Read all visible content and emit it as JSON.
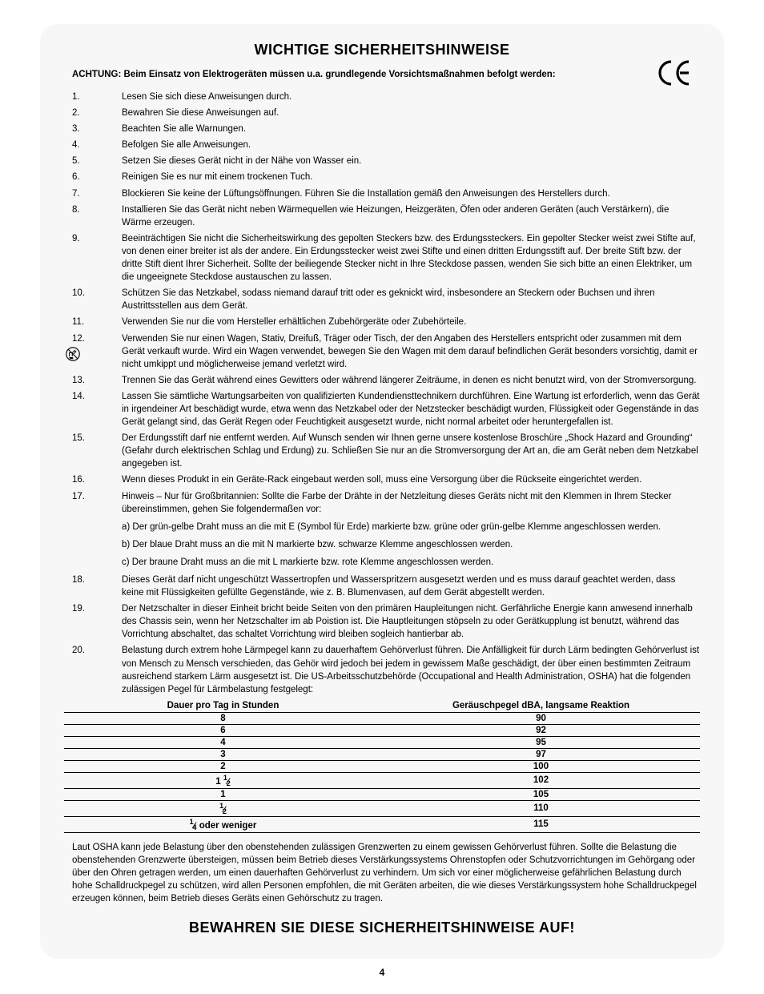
{
  "title": "WICHTIGE SICHERHEITSHINWEISE",
  "ce_mark": "CE",
  "warning": "ACHTUNG: Beim Einsatz von Elektrogeräten müssen u.a. grundlegende Vorsichtsmaßnahmen befolgt werden:",
  "items": [
    "Lesen Sie sich diese Anweisungen durch.",
    "Bewahren Sie diese Anweisungen auf.",
    "Beachten Sie alle Warnungen.",
    "Befolgen Sie alle Anweisungen.",
    "Setzen Sie dieses Gerät nicht in der Nähe von Wasser ein.",
    "Reinigen Sie es nur mit einem trockenen Tuch.",
    "Blockieren Sie keine der Lüftungsöffnungen. Führen Sie die Installation gemäß den Anweisungen des Herstellers durch.",
    "Installieren Sie das Gerät nicht neben Wärmequellen wie Heizungen, Heizgeräten, Öfen oder anderen Geräten (auch Verstärkern), die Wärme erzeugen.",
    "Beeinträchtigen Sie nicht die Sicherheitswirkung des gepolten Steckers bzw. des Erdungssteckers. Ein gepolter Stecker weist zwei Stifte auf, von denen einer breiter ist als der andere. Ein Erdungsstecker weist zwei Stifte und einen dritten Erdungsstift auf. Der breite Stift bzw. der dritte Stift dient Ihrer Sicherheit. Sollte der beiliegende Stecker nicht in Ihre Steckdose passen, wenden Sie sich bitte an einen Elektriker, um die ungeeignete Steckdose austauschen zu lassen.",
    "Schützen Sie das Netzkabel, sodass niemand darauf tritt oder es geknickt wird, insbesondere an Steckern oder Buchsen und ihren Austrittsstellen aus dem Gerät.",
    "Verwenden Sie nur die vom Hersteller erhältlichen Zubehörgeräte oder Zubehörteile.",
    "Verwenden Sie nur einen Wagen, Stativ, Dreifuß, Träger oder Tisch, der den Angaben des Herstellers entspricht oder zusammen mit dem Gerät verkauft wurde. Wird ein Wagen verwendet, bewegen Sie den Wagen mit dem darauf befindlichen Gerät besonders vorsichtig, damit er nicht umkippt und möglicherweise jemand verletzt wird.",
    "Trennen Sie das Gerät während eines Gewitters oder während längerer Zeiträume, in denen es nicht benutzt wird, von der Stromversorgung.",
    "Lassen Sie sämtliche Wartungsarbeiten von qualifizierten Kundendiensttechnikern durchführen. Eine Wartung ist erforderlich, wenn das Gerät in irgendeiner Art beschädigt wurde, etwa wenn das Netzkabel oder der Netzstecker beschädigt wurden, Flüssigkeit oder Gegenstände in das Gerät gelangt sind, das Gerät Regen oder Feuchtigkeit ausgesetzt wurde, nicht normal arbeitet oder heruntergefallen ist.",
    "Der Erdungsstift darf nie entfernt werden. Auf Wunsch senden wir Ihnen gerne unsere kostenlose Broschüre „Shock Hazard and Grounding“ (Gefahr durch elektrischen Schlag und Erdung) zu. Schließen Sie nur an die Stromversorgung der Art an, die am Gerät neben dem Netzkabel angegeben ist.",
    "Wenn dieses Produkt in ein Geräte-Rack eingebaut werden soll, muss eine Versorgung über die Rückseite eingerichtet werden.",
    "Hinweis – Nur für Großbritannien: Sollte die Farbe der Drähte in der Netzleitung dieses Geräts nicht mit den Klemmen in Ihrem Stecker übereinstimmen, gehen Sie folgendermaßen vor:",
    "Dieses Gerät darf nicht ungeschützt Wassertropfen und Wasserspritzern ausgesetzt werden und es muss darauf geachtet werden, dass keine mit Flüssigkeiten gefüllte Gegenstände, wie z. B. Blumenvasen, auf dem Gerät abgestellt werden.",
    "Der  Netzschalter in dieser Einheit bricht beide Seiten von den primären Haupleitungen nicht. Gerfährliche Energie kann anwesend innerhalb des Chassis sein, wenn her Netzschalter im ab Poistion ist. Die Hauptleitungen stöpseln zu oder Gerätkupplung ist benutzt, während das Vorrichtung abschaltet, das schaltet Vorrichtung wird bleiben sogleich hantierbar ab.",
    "Belastung durch extrem hohe Lärmpegel kann zu dauerhaftem Gehörverlust führen. Die Anfälligkeit für durch Lärm bedingten Gehörverlust ist von Mensch zu Mensch verschieden, das Gehör wird jedoch bei jedem in gewissem Maße geschädigt, der über einen bestimmten Zeitraum ausreichend starkem Lärm ausgesetzt ist. Die US-Arbeitsschutzbehörde (Occupational and Health Administration, OSHA) hat die folgenden zulässigen Pegel für Lärmbelastung festgelegt:"
  ],
  "item17_sub": [
    "a) Der grün-gelbe Draht muss an die mit E (Symbol für Erde) markierte bzw. grüne oder grün-gelbe Klemme angeschlossen werden.",
    "b) Der blaue Draht muss an die mit N markierte bzw. schwarze Klemme angeschlossen werden.",
    "c) Der braune Draht muss an die mit L markierte bzw. rote Klemme angeschlossen werden."
  ],
  "table": {
    "header_left": "Dauer pro Tag in Stunden",
    "header_right": "Geräuschpegel dBA, langsame Reaktion",
    "rows": [
      [
        "8",
        "90"
      ],
      [
        "6",
        "92"
      ],
      [
        "4",
        "95"
      ],
      [
        "3",
        "97"
      ],
      [
        "2",
        "100"
      ],
      [
        "1 ½",
        "102"
      ],
      [
        "1",
        "105"
      ],
      [
        "½",
        "110"
      ],
      [
        "¼ oder weniger",
        "115"
      ]
    ]
  },
  "post_table": "Laut OSHA kann jede Belastung über den obenstehenden zulässigen Grenzwerten zu einem gewissen Gehörverlust führen. Sollte die Belastung die obenstehenden Grenzwerte übersteigen, müssen beim Betrieb dieses Verstärkungssystems Ohrenstopfen oder Schutzvorrichtungen im Gehörgang oder über den Ohren getragen werden, um einen dauerhaften Gehörverlust zu verhindern. Um sich vor einer möglicherweise gefährlichen Belastung durch hohe Schalldruckpegel zu schützen, wird allen Personen empfohlen, die mit Geräten arbeiten, die wie dieses Verstärkungssystem hohe Schalldruckpegel erzeugen können, beim Betrieb dieses Geräts einen Gehörschutz zu tragen.",
  "footer_title": "BEWAHREN SIE DIESE SICHERHEITSHINWEISE AUF!",
  "page_number": "4",
  "colors": {
    "page_bg": "#ffffff",
    "card_bg": "#f7f7f7",
    "text": "#000000",
    "rule": "#000000"
  }
}
